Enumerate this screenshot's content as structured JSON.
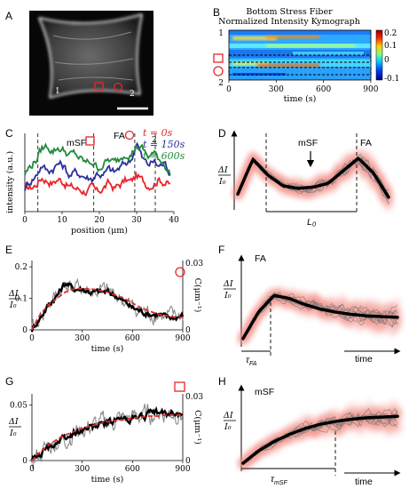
{
  "panel_letters": {
    "A": "A",
    "B": "B",
    "C": "C",
    "D": "D",
    "E": "E",
    "F": "F",
    "G": "G",
    "H": "H"
  },
  "colors": {
    "t0": "#e8262a",
    "t150": "#2b2f9c",
    "t600": "#1f8a3c",
    "fit": "#e8262a",
    "marker": "#e8262a",
    "glow": "#f28b82"
  },
  "panel_a": {
    "label_1": "1",
    "label_2": "2"
  },
  "panel_b": {
    "title_line1": "Bottom Stress Fiber",
    "title_line2": "Normalized Intensity Kymograph",
    "y_label_top": "1",
    "y_label_bottom": "2",
    "x_ticks": [
      "0",
      "300",
      "600",
      "900"
    ],
    "x_label": "time (s)",
    "colorbar_ticks": [
      "0.2",
      "0.1",
      "0",
      "-0.1"
    ]
  },
  "chart_data": [
    {
      "panel": "C",
      "type": "line",
      "xlabel": "position (μm)",
      "ylabel": "intensity (a.u.)",
      "x_ticks": [
        "0",
        "10",
        "20",
        "30",
        "40"
      ],
      "xlim": [
        0,
        40
      ],
      "annotations": {
        "mSF": "mSF",
        "FA": "FA",
        "pos1": "1",
        "pos2": "2"
      },
      "legend": [
        "t = 0s",
        "t = 150s",
        "t = 600s"
      ],
      "x": [
        0,
        1.5,
        3,
        4.5,
        6,
        7.5,
        9,
        10.5,
        12,
        13.5,
        15,
        16.5,
        18,
        19.5,
        21,
        22.5,
        24,
        25.5,
        27,
        28.5,
        30,
        31.5,
        33,
        34.5,
        36,
        37.5,
        39
      ],
      "series": [
        {
          "name": "t = 0s",
          "values": [
            0.3,
            0.3,
            0.34,
            0.44,
            0.4,
            0.37,
            0.42,
            0.38,
            0.32,
            0.3,
            0.28,
            0.26,
            0.3,
            0.24,
            0.3,
            0.36,
            0.3,
            0.34,
            0.4,
            0.38,
            0.46,
            0.4,
            0.34,
            0.36,
            0.42,
            0.38,
            0.34
          ]
        },
        {
          "name": "t = 150s",
          "values": [
            0.3,
            0.4,
            0.46,
            0.6,
            0.52,
            0.55,
            0.62,
            0.58,
            0.46,
            0.5,
            0.48,
            0.44,
            0.42,
            0.5,
            0.46,
            0.54,
            0.5,
            0.56,
            0.62,
            0.66,
            0.9,
            0.68,
            0.6,
            0.64,
            0.58,
            0.62,
            0.5
          ]
        },
        {
          "name": "t = 600s",
          "values": [
            0.48,
            0.58,
            0.66,
            0.8,
            0.84,
            0.78,
            0.82,
            0.78,
            0.72,
            0.74,
            0.66,
            0.62,
            0.64,
            0.56,
            0.6,
            0.66,
            0.62,
            0.68,
            0.76,
            0.74,
            0.84,
            0.8,
            0.7,
            0.74,
            0.68,
            0.62,
            0.48
          ]
        }
      ]
    },
    {
      "panel": "D",
      "type": "line",
      "ylabel_num": "ΔI",
      "ylabel_den": "I₀",
      "annotations": {
        "mSF": "mSF",
        "FA": "FA",
        "length": "L₀"
      },
      "x": [
        0,
        0.1,
        0.2,
        0.3,
        0.4,
        0.5,
        0.6,
        0.7,
        0.8,
        0.9,
        1.0
      ],
      "series": [
        {
          "name": "",
          "values": [
            0.25,
            0.8,
            0.55,
            0.38,
            0.34,
            0.36,
            0.42,
            0.62,
            0.82,
            0.58,
            0.2
          ]
        }
      ]
    },
    {
      "panel": "E",
      "type": "line",
      "ylabel_num": "ΔI",
      "ylabel_den": "I₀",
      "y2label": "C(μm⁻¹)",
      "xlabel": "time (s)",
      "x_ticks": [
        "0",
        "300",
        "600",
        "900"
      ],
      "y_ticks": [
        "0",
        "0.1",
        "0.2"
      ],
      "y2_ticks": [
        "0",
        "0.03"
      ],
      "xlim": [
        0,
        900
      ],
      "ylim": [
        0,
        0.22
      ],
      "x": [
        0,
        50,
        100,
        150,
        200,
        250,
        300,
        350,
        400,
        450,
        500,
        550,
        600,
        650,
        700,
        750,
        800,
        850,
        900
      ],
      "series": [
        {
          "name": "",
          "values": [
            0.0,
            0.04,
            0.08,
            0.11,
            0.15,
            0.13,
            0.13,
            0.12,
            0.12,
            0.12,
            0.11,
            0.09,
            0.07,
            0.06,
            0.05,
            0.05,
            0.04,
            0.04,
            0.045
          ]
        },
        {
          "name": "",
          "values": [
            0.0,
            0.05,
            0.08,
            0.1,
            0.12,
            0.13,
            0.13,
            0.13,
            0.125,
            0.12,
            0.11,
            0.1,
            0.085,
            0.07,
            0.06,
            0.05,
            0.045,
            0.04,
            0.04
          ]
        }
      ]
    },
    {
      "panel": "F",
      "type": "line",
      "annotations": {
        "label": "FA",
        "tau": "τ",
        "tau_sub": "FA",
        "time": "time"
      },
      "ylabel_num": "ΔI",
      "ylabel_den": "I₀",
      "x": [
        0,
        0.1,
        0.2,
        0.3,
        0.4,
        0.5,
        0.6,
        0.7,
        0.8,
        0.9,
        1.0
      ],
      "series": [
        {
          "name": "",
          "values": [
            0.05,
            0.4,
            0.62,
            0.58,
            0.5,
            0.44,
            0.4,
            0.37,
            0.35,
            0.34,
            0.33
          ]
        }
      ]
    },
    {
      "panel": "G",
      "type": "line",
      "ylabel_num": "ΔI",
      "ylabel_den": "I₀",
      "y2label": "C(μm⁻¹)",
      "xlabel": "time (s)",
      "x_ticks": [
        "0",
        "300",
        "600",
        "900"
      ],
      "y_ticks": [
        "0",
        "0.05"
      ],
      "y2_ticks": [
        "0",
        "0.03"
      ],
      "xlim": [
        0,
        900
      ],
      "ylim": [
        0,
        0.06
      ],
      "x": [
        0,
        50,
        100,
        150,
        200,
        250,
        300,
        350,
        400,
        450,
        500,
        550,
        600,
        650,
        700,
        750,
        800,
        850,
        900
      ],
      "series": [
        {
          "name": "",
          "values": [
            0.0,
            0.006,
            0.012,
            0.017,
            0.02,
            0.024,
            0.028,
            0.03,
            0.032,
            0.034,
            0.036,
            0.037,
            0.038,
            0.04,
            0.041,
            0.043,
            0.042,
            0.044,
            0.04
          ]
        },
        {
          "name": "",
          "values": [
            0.0,
            0.008,
            0.014,
            0.019,
            0.023,
            0.026,
            0.029,
            0.031,
            0.033,
            0.035,
            0.036,
            0.037,
            0.038,
            0.039,
            0.04,
            0.04,
            0.041,
            0.041,
            0.041
          ]
        }
      ]
    },
    {
      "panel": "H",
      "type": "line",
      "annotations": {
        "label": "mSF",
        "tau": "τ",
        "tau_sub": "mSF",
        "time": "time"
      },
      "ylabel_num": "ΔI",
      "ylabel_den": "I₀",
      "x": [
        0,
        0.1,
        0.2,
        0.3,
        0.4,
        0.5,
        0.6,
        0.7,
        0.8,
        0.9,
        1.0
      ],
      "series": [
        {
          "name": "",
          "values": [
            0.05,
            0.22,
            0.35,
            0.45,
            0.53,
            0.59,
            0.63,
            0.66,
            0.68,
            0.69,
            0.7
          ]
        }
      ]
    }
  ]
}
